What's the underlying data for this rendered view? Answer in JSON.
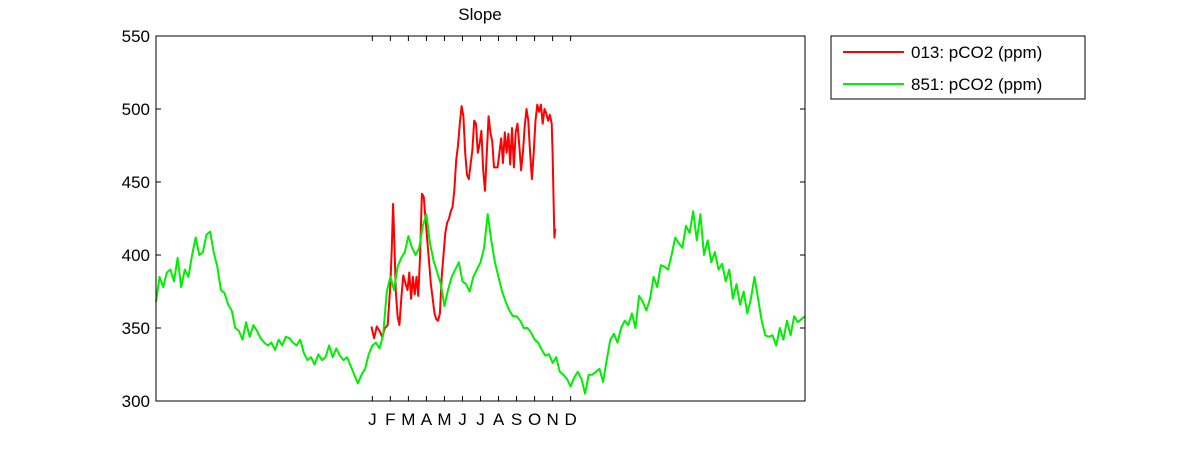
{
  "chart_data": {
    "type": "line",
    "title": "Slope",
    "xlabel": "",
    "ylabel": "",
    "ylim": [
      300,
      550
    ],
    "yticks": [
      300,
      350,
      400,
      450,
      500,
      550
    ],
    "xlim": [
      0,
      36
    ],
    "xticks": [
      {
        "x": 12,
        "label": "J"
      },
      {
        "x": 13,
        "label": "F"
      },
      {
        "x": 14,
        "label": "M"
      },
      {
        "x": 15,
        "label": "A"
      },
      {
        "x": 16,
        "label": "M"
      },
      {
        "x": 17,
        "label": "J"
      },
      {
        "x": 18,
        "label": "J"
      },
      {
        "x": 19,
        "label": "A"
      },
      {
        "x": 20,
        "label": "S"
      },
      {
        "x": 21,
        "label": "O"
      },
      {
        "x": 22,
        "label": "N"
      },
      {
        "x": 23,
        "label": "D"
      }
    ],
    "grid": false,
    "legend_position": "outside-top-right",
    "series": [
      {
        "name": "013: pCO2 (ppm)",
        "color": "#ff0000",
        "points": [
          [
            11.95,
            351
          ],
          [
            12.1,
            343
          ],
          [
            12.25,
            351
          ],
          [
            12.4,
            348
          ],
          [
            12.55,
            344
          ],
          [
            12.7,
            350
          ],
          [
            12.85,
            352
          ],
          [
            13.0,
            380
          ],
          [
            13.08,
            405
          ],
          [
            13.15,
            435
          ],
          [
            13.22,
            410
          ],
          [
            13.3,
            375
          ],
          [
            13.4,
            358
          ],
          [
            13.5,
            352
          ],
          [
            13.62,
            372
          ],
          [
            13.72,
            386
          ],
          [
            13.85,
            380
          ],
          [
            13.95,
            376
          ],
          [
            14.05,
            388
          ],
          [
            14.15,
            370
          ],
          [
            14.25,
            385
          ],
          [
            14.35,
            373
          ],
          [
            14.45,
            385
          ],
          [
            14.55,
            372
          ],
          [
            14.65,
            400
          ],
          [
            14.75,
            442
          ],
          [
            14.85,
            440
          ],
          [
            14.95,
            425
          ],
          [
            15.05,
            410
          ],
          [
            15.15,
            395
          ],
          [
            15.25,
            380
          ],
          [
            15.35,
            370
          ],
          [
            15.45,
            360
          ],
          [
            15.55,
            356
          ],
          [
            15.65,
            355
          ],
          [
            15.75,
            360
          ],
          [
            15.85,
            385
          ],
          [
            15.95,
            400
          ],
          [
            16.05,
            415
          ],
          [
            16.15,
            422
          ],
          [
            16.25,
            425
          ],
          [
            16.35,
            430
          ],
          [
            16.45,
            433
          ],
          [
            16.55,
            445
          ],
          [
            16.65,
            465
          ],
          [
            16.75,
            475
          ],
          [
            16.85,
            490
          ],
          [
            16.95,
            502
          ],
          [
            17.05,
            495
          ],
          [
            17.15,
            470
          ],
          [
            17.25,
            455
          ],
          [
            17.35,
            452
          ],
          [
            17.45,
            462
          ],
          [
            17.55,
            472
          ],
          [
            17.65,
            492
          ],
          [
            17.75,
            490
          ],
          [
            17.85,
            470
          ],
          [
            17.95,
            476
          ],
          [
            18.05,
            485
          ],
          [
            18.15,
            458
          ],
          [
            18.25,
            444
          ],
          [
            18.35,
            470
          ],
          [
            18.45,
            495
          ],
          [
            18.55,
            484
          ],
          [
            18.65,
            478
          ],
          [
            18.75,
            460
          ],
          [
            18.85,
            460
          ],
          [
            18.95,
            460
          ],
          [
            19.05,
            470
          ],
          [
            19.15,
            480
          ],
          [
            19.25,
            463
          ],
          [
            19.35,
            484
          ],
          [
            19.45,
            470
          ],
          [
            19.55,
            483
          ],
          [
            19.65,
            462
          ],
          [
            19.75,
            487
          ],
          [
            19.85,
            460
          ],
          [
            19.95,
            484
          ],
          [
            20.05,
            490
          ],
          [
            20.15,
            475
          ],
          [
            20.25,
            458
          ],
          [
            20.35,
            470
          ],
          [
            20.45,
            488
          ],
          [
            20.55,
            500
          ],
          [
            20.65,
            492
          ],
          [
            20.75,
            470
          ],
          [
            20.85,
            452
          ],
          [
            20.95,
            470
          ],
          [
            21.05,
            492
          ],
          [
            21.15,
            503
          ],
          [
            21.25,
            498
          ],
          [
            21.35,
            503
          ],
          [
            21.45,
            490
          ],
          [
            21.55,
            500
          ],
          [
            21.65,
            497
          ],
          [
            21.75,
            492
          ],
          [
            21.85,
            496
          ],
          [
            21.95,
            490
          ],
          [
            22.0,
            470
          ],
          [
            22.05,
            440
          ],
          [
            22.1,
            412
          ],
          [
            22.15,
            418
          ]
        ]
      },
      {
        "name": "851: pCO2 (ppm)",
        "color": "#00ee00",
        "points": [
          [
            0,
            368
          ],
          [
            0.2,
            385
          ],
          [
            0.4,
            378
          ],
          [
            0.6,
            388
          ],
          [
            0.8,
            390
          ],
          [
            1.0,
            382
          ],
          [
            1.2,
            398
          ],
          [
            1.4,
            378
          ],
          [
            1.6,
            390
          ],
          [
            1.8,
            385
          ],
          [
            2.0,
            400
          ],
          [
            2.2,
            412
          ],
          [
            2.4,
            400
          ],
          [
            2.6,
            402
          ],
          [
            2.8,
            414
          ],
          [
            3.0,
            416
          ],
          [
            3.2,
            402
          ],
          [
            3.4,
            392
          ],
          [
            3.6,
            376
          ],
          [
            3.8,
            374
          ],
          [
            4.0,
            366
          ],
          [
            4.2,
            362
          ],
          [
            4.4,
            350
          ],
          [
            4.6,
            348
          ],
          [
            4.8,
            342
          ],
          [
            5.0,
            354
          ],
          [
            5.2,
            344
          ],
          [
            5.4,
            352
          ],
          [
            5.6,
            348
          ],
          [
            5.8,
            343
          ],
          [
            6.0,
            340
          ],
          [
            6.2,
            338
          ],
          [
            6.4,
            340
          ],
          [
            6.6,
            335
          ],
          [
            6.8,
            342
          ],
          [
            7.0,
            338
          ],
          [
            7.2,
            344
          ],
          [
            7.4,
            343
          ],
          [
            7.6,
            340
          ],
          [
            7.8,
            338
          ],
          [
            8.0,
            342
          ],
          [
            8.2,
            333
          ],
          [
            8.4,
            328
          ],
          [
            8.6,
            330
          ],
          [
            8.8,
            325
          ],
          [
            9.0,
            332
          ],
          [
            9.2,
            328
          ],
          [
            9.4,
            330
          ],
          [
            9.6,
            338
          ],
          [
            9.8,
            330
          ],
          [
            10.0,
            336
          ],
          [
            10.2,
            331
          ],
          [
            10.4,
            328
          ],
          [
            10.6,
            330
          ],
          [
            10.8,
            324
          ],
          [
            11.0,
            318
          ],
          [
            11.2,
            312
          ],
          [
            11.4,
            318
          ],
          [
            11.6,
            322
          ],
          [
            11.8,
            332
          ],
          [
            12.0,
            338
          ],
          [
            12.2,
            340
          ],
          [
            12.4,
            336
          ],
          [
            12.6,
            345
          ],
          [
            12.8,
            375
          ],
          [
            13.0,
            385
          ],
          [
            13.2,
            376
          ],
          [
            13.4,
            392
          ],
          [
            13.6,
            398
          ],
          [
            13.8,
            402
          ],
          [
            14.0,
            413
          ],
          [
            14.2,
            405
          ],
          [
            14.4,
            400
          ],
          [
            14.6,
            405
          ],
          [
            14.8,
            420
          ],
          [
            15.0,
            428
          ],
          [
            15.2,
            408
          ],
          [
            15.4,
            396
          ],
          [
            15.6,
            388
          ],
          [
            15.8,
            380
          ],
          [
            16.0,
            365
          ],
          [
            16.2,
            376
          ],
          [
            16.4,
            385
          ],
          [
            16.6,
            390
          ],
          [
            16.8,
            395
          ],
          [
            17.0,
            382
          ],
          [
            17.2,
            380
          ],
          [
            17.4,
            375
          ],
          [
            17.6,
            385
          ],
          [
            17.8,
            390
          ],
          [
            18.0,
            395
          ],
          [
            18.2,
            405
          ],
          [
            18.4,
            428
          ],
          [
            18.6,
            410
          ],
          [
            18.8,
            395
          ],
          [
            19.0,
            385
          ],
          [
            19.2,
            375
          ],
          [
            19.4,
            368
          ],
          [
            19.6,
            362
          ],
          [
            19.8,
            358
          ],
          [
            20.0,
            358
          ],
          [
            20.2,
            355
          ],
          [
            20.4,
            350
          ],
          [
            20.6,
            350
          ],
          [
            20.8,
            347
          ],
          [
            21.0,
            342
          ],
          [
            21.2,
            340
          ],
          [
            21.4,
            335
          ],
          [
            21.6,
            331
          ],
          [
            21.8,
            332
          ],
          [
            22.0,
            326
          ],
          [
            22.2,
            330
          ],
          [
            22.4,
            320
          ],
          [
            22.6,
            318
          ],
          [
            22.8,
            315
          ],
          [
            23.0,
            310
          ],
          [
            23.2,
            316
          ],
          [
            23.4,
            320
          ],
          [
            23.6,
            315
          ],
          [
            23.8,
            305
          ],
          [
            24.0,
            318
          ],
          [
            24.2,
            318
          ],
          [
            24.4,
            320
          ],
          [
            24.6,
            322
          ],
          [
            24.8,
            313
          ],
          [
            25.0,
            328
          ],
          [
            25.2,
            342
          ],
          [
            25.4,
            346
          ],
          [
            25.6,
            340
          ],
          [
            25.8,
            350
          ],
          [
            26.0,
            355
          ],
          [
            26.2,
            352
          ],
          [
            26.4,
            360
          ],
          [
            26.6,
            350
          ],
          [
            26.8,
            372
          ],
          [
            27.0,
            368
          ],
          [
            27.2,
            362
          ],
          [
            27.4,
            370
          ],
          [
            27.6,
            385
          ],
          [
            27.8,
            378
          ],
          [
            28.0,
            393
          ],
          [
            28.2,
            392
          ],
          [
            28.4,
            390
          ],
          [
            28.6,
            400
          ],
          [
            28.8,
            412
          ],
          [
            29.0,
            408
          ],
          [
            29.2,
            405
          ],
          [
            29.4,
            420
          ],
          [
            29.6,
            415
          ],
          [
            29.8,
            430
          ],
          [
            30.0,
            410
          ],
          [
            30.2,
            428
          ],
          [
            30.4,
            400
          ],
          [
            30.6,
            410
          ],
          [
            30.8,
            395
          ],
          [
            31.0,
            402
          ],
          [
            31.2,
            390
          ],
          [
            31.4,
            394
          ],
          [
            31.6,
            382
          ],
          [
            31.8,
            390
          ],
          [
            32.0,
            370
          ],
          [
            32.2,
            380
          ],
          [
            32.4,
            366
          ],
          [
            32.6,
            375
          ],
          [
            32.8,
            360
          ],
          [
            33.0,
            370
          ],
          [
            33.2,
            385
          ],
          [
            33.4,
            370
          ],
          [
            33.6,
            355
          ],
          [
            33.8,
            345
          ],
          [
            34.0,
            344
          ],
          [
            34.2,
            345
          ],
          [
            34.4,
            338
          ],
          [
            34.6,
            350
          ],
          [
            34.8,
            342
          ],
          [
            35.0,
            355
          ],
          [
            35.2,
            345
          ],
          [
            35.4,
            358
          ],
          [
            35.6,
            354
          ],
          [
            35.8,
            356
          ],
          [
            36.0,
            358
          ]
        ]
      }
    ]
  }
}
